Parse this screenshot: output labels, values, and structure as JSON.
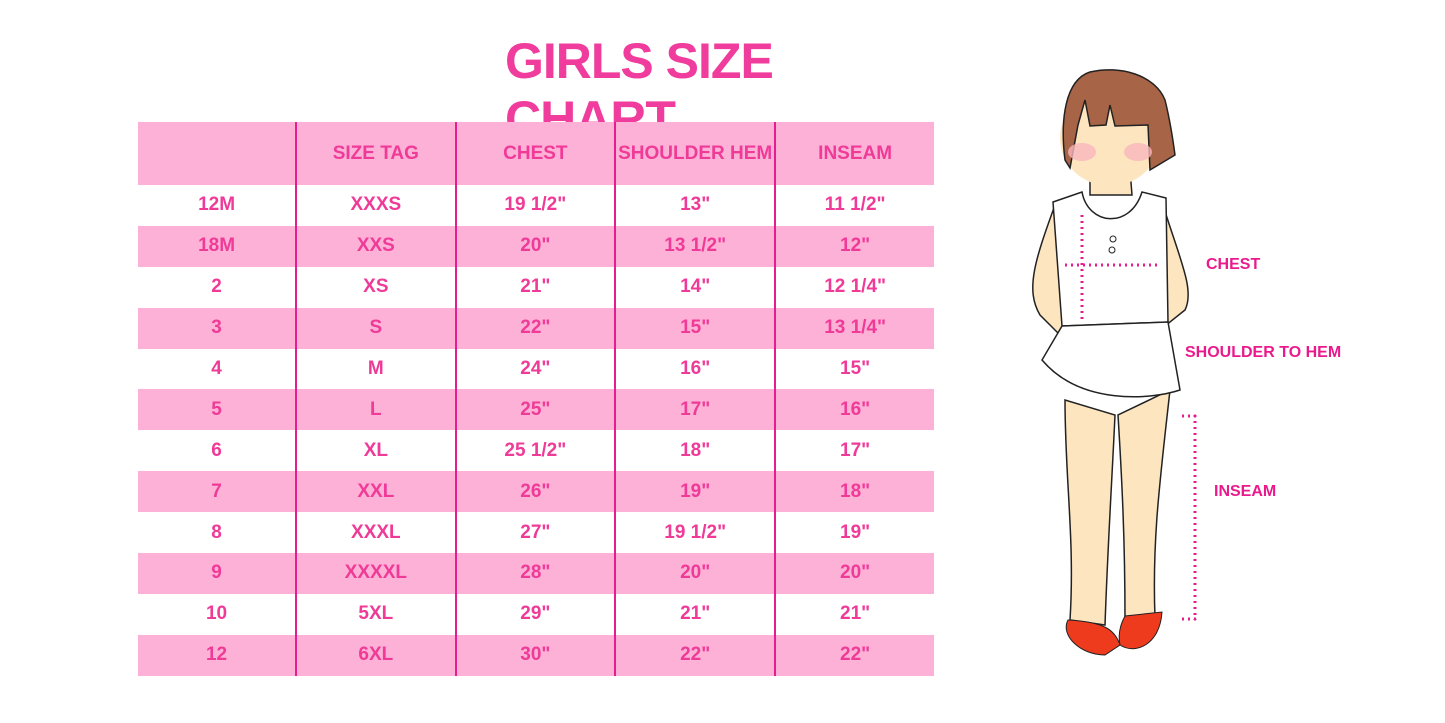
{
  "title": "GIRLS SIZE CHART",
  "table": {
    "headers": [
      "",
      "SIZE TAG",
      "CHEST",
      "SHOULDER HEM",
      "INSEAM"
    ],
    "rows": [
      [
        "12M",
        "XXXS",
        "19 1/2\"",
        "13\"",
        "11 1/2\""
      ],
      [
        "18M",
        "XXS",
        "20\"",
        "13 1/2\"",
        "12\""
      ],
      [
        "2",
        "XS",
        "21\"",
        "14\"",
        "12 1/4\""
      ],
      [
        "3",
        "S",
        "22\"",
        "15\"",
        "13 1/4\""
      ],
      [
        "4",
        "M",
        "24\"",
        "16\"",
        "15\""
      ],
      [
        "5",
        "L",
        "25\"",
        "17\"",
        "16\""
      ],
      [
        "6",
        "XL",
        "25 1/2\"",
        "18\"",
        "17\""
      ],
      [
        "7",
        "XXL",
        "26\"",
        "19\"",
        "18\""
      ],
      [
        "8",
        "XXXL",
        "27\"",
        "19 1/2\"",
        "19\""
      ],
      [
        "9",
        "XXXXL",
        "28\"",
        "20\"",
        "20\""
      ],
      [
        "10",
        "5XL",
        "29\"",
        "21\"",
        "21\""
      ],
      [
        "12",
        "6XL",
        "30\"",
        "22\"",
        "22\""
      ]
    ]
  },
  "figure": {
    "labels": {
      "chest": "CHEST",
      "shoulder": "SHOULDER TO HEM",
      "inseam": "INSEAM"
    }
  },
  "colors": {
    "accent": "#f03c9c",
    "row_pink": "#fdb1d6",
    "divider": "#e51d8f"
  }
}
